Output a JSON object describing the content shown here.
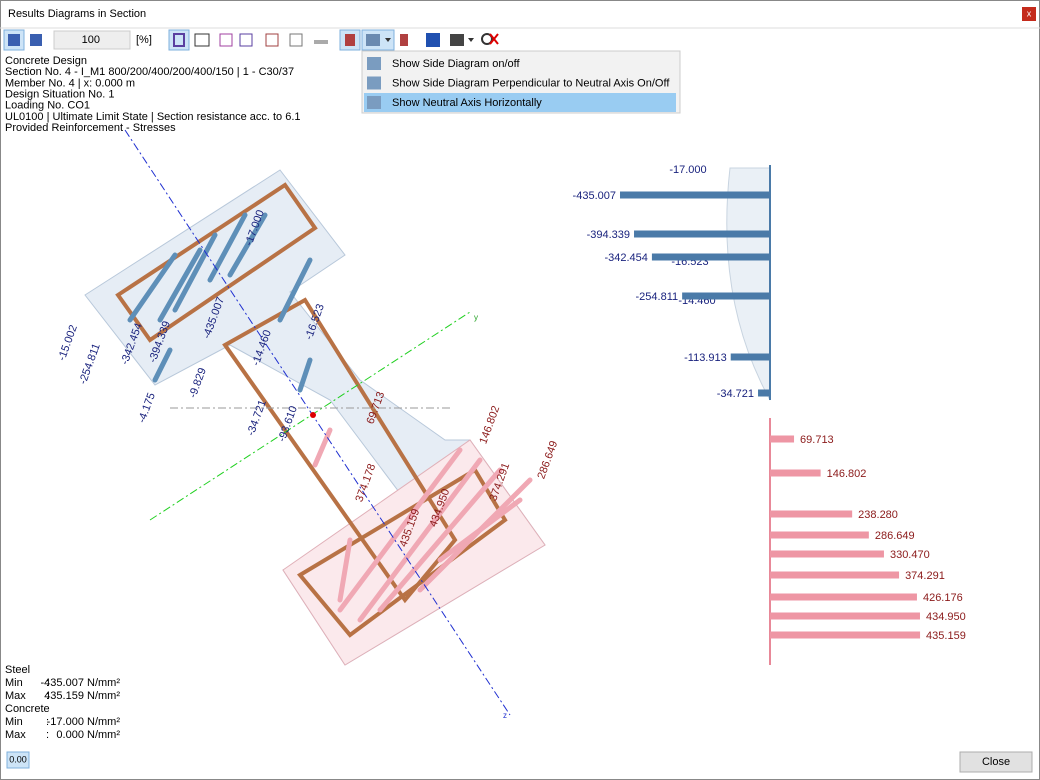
{
  "window": {
    "title": "Results Diagrams in Section",
    "close_icon": "x",
    "close_button": "Close"
  },
  "toolbar": {
    "zoom": "100",
    "zoom_unit": "[%]"
  },
  "menu": {
    "items": [
      "Show Side Diagram on/off",
      "Show Side Diagram Perpendicular to Neutral Axis On/Off",
      "Show Neutral Axis Horizontally"
    ],
    "highlighted": 2
  },
  "info": [
    "Concrete Design",
    "Section No. 4 - I_M1 800/200/400/200/400/150 | 1 - C30/37",
    "Member No. 4 | x: 0.000 m",
    "Design Situation No. 1",
    "Loading No. CO1",
    "UL0100 | Ultimate Limit State | Section resistance acc. to 6.1",
    "Provided Reinforcement - Stresses"
  ],
  "section": {
    "axis_labels": [
      "y",
      "z"
    ],
    "labels": [
      "-17.000",
      "-435.007",
      "-394.339",
      "-342.454",
      "-254.811",
      "-15.002",
      "-16.523",
      "-14.460",
      "-9.829",
      "-4.175",
      "-34.721",
      "-93.610",
      "69.713",
      "374.178",
      "146.802",
      "286.649",
      "374.291",
      "434.950",
      "435.159"
    ]
  },
  "side_diagram": {
    "concrete_labels": [
      "-17.000",
      "-16.523",
      "-14.460"
    ],
    "steel": [
      {
        "value": -435.007,
        "label": "-435.007"
      },
      {
        "value": -394.339,
        "label": "-394.339"
      },
      {
        "value": -342.454,
        "label": "-342.454"
      },
      {
        "value": -254.811,
        "label": "-254.811"
      },
      {
        "value": -113.913,
        "label": "-113.913"
      },
      {
        "value": -34.721,
        "label": "-34.721"
      },
      {
        "value": 69.713,
        "label": "69.713"
      },
      {
        "value": 146.802,
        "label": "146.802"
      },
      {
        "value": 238.28,
        "label": "238.280"
      },
      {
        "value": 286.649,
        "label": "286.649"
      },
      {
        "value": 330.47,
        "label": "330.470"
      },
      {
        "value": 374.291,
        "label": "374.291"
      },
      {
        "value": 426.176,
        "label": "426.176"
      },
      {
        "value": 434.95,
        "label": "434.950"
      },
      {
        "value": 435.159,
        "label": "435.159"
      }
    ]
  },
  "summary": {
    "separator": ":",
    "groups": [
      {
        "heading": "Steel",
        "rows": [
          [
            "Min",
            "-435.007 N/mm²"
          ],
          [
            "Max",
            "435.159 N/mm²"
          ]
        ]
      },
      {
        "heading": "Concrete",
        "rows": [
          [
            "Min",
            "-17.000 N/mm²"
          ],
          [
            "Max",
            "0.000 N/mm²"
          ]
        ]
      }
    ]
  },
  "status_icon": "0.00"
}
